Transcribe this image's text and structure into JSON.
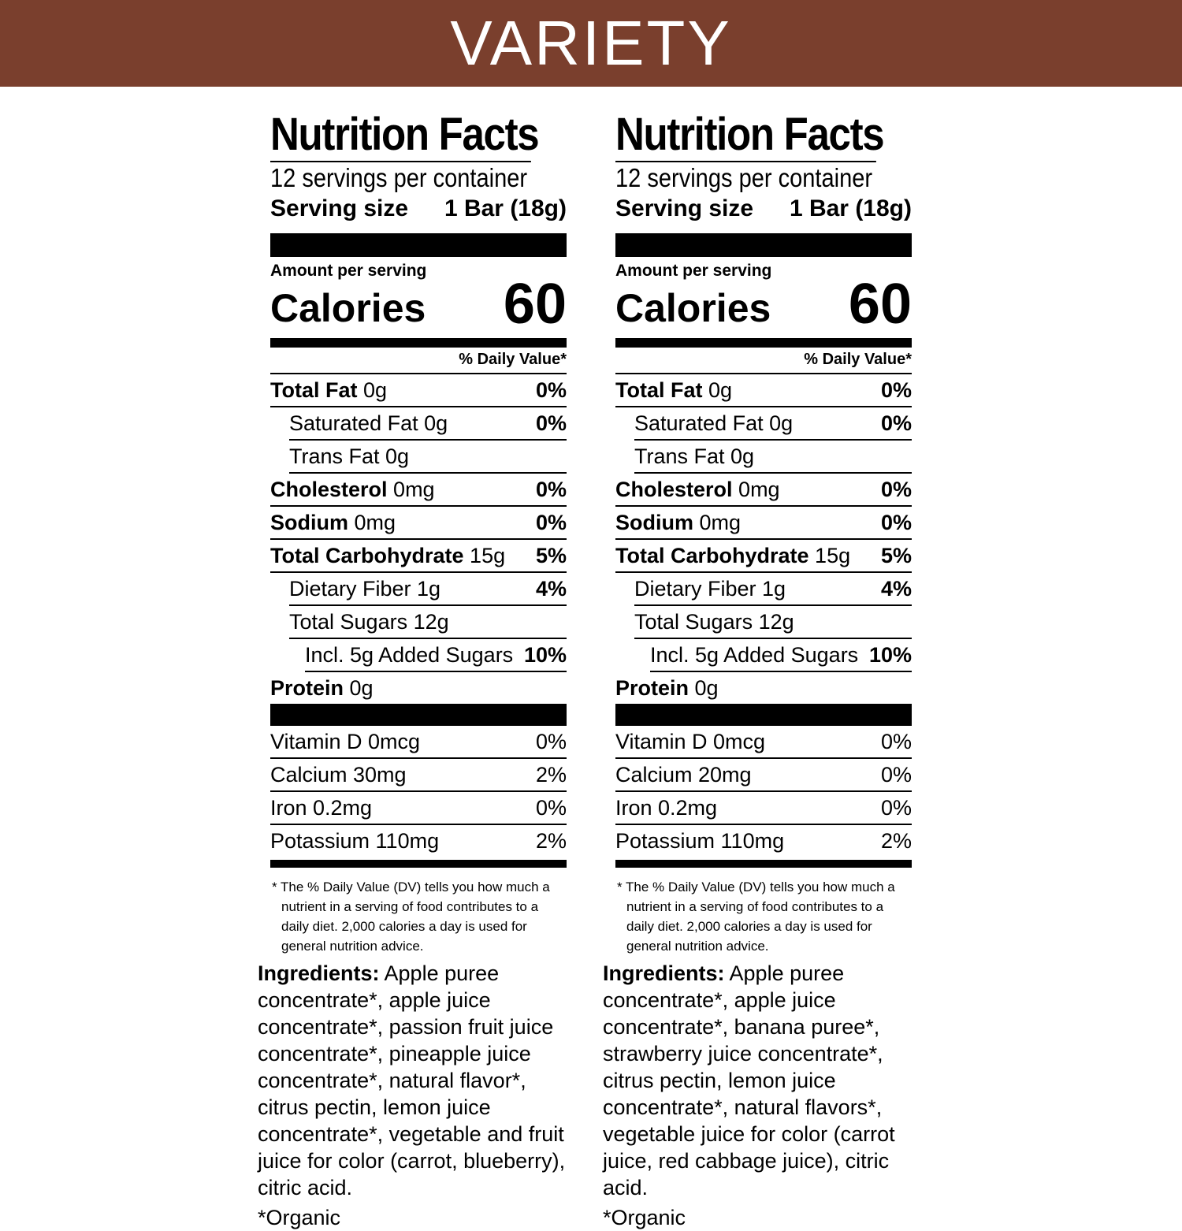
{
  "banner": {
    "title": "VARIETY",
    "color": "#7a3f2d"
  },
  "panels": [
    {
      "title": "Nutrition Facts",
      "servings": "12 servings per container",
      "serving_size_label": "Serving size",
      "serving_size_value": "1 Bar (18g)",
      "amount_label": "Amount per serving",
      "calories_label": "Calories",
      "calories_value": "60",
      "dv_header": "% Daily Value*",
      "nutrients": [
        {
          "name": "Total Fat",
          "amount": "0g",
          "dv": "0%"
        },
        {
          "name": "Saturated Fat 0g",
          "dv": "0%"
        },
        {
          "name": "Trans Fat 0g",
          "dv": ""
        },
        {
          "name": "Cholesterol",
          "amount": "0mg",
          "dv": "0%"
        },
        {
          "name": "Sodium",
          "amount": "0mg",
          "dv": "0%"
        },
        {
          "name": "Total Carbohydrate",
          "amount": "15g",
          "dv": "5%"
        },
        {
          "name": "Dietary Fiber 1g",
          "dv": "4%"
        },
        {
          "name": "Total Sugars 12g",
          "dv": ""
        },
        {
          "name": "Incl. 5g Added Sugars",
          "dv": "10%"
        },
        {
          "name": "Protein",
          "amount": "0g",
          "dv": ""
        }
      ],
      "vitamins": [
        {
          "name": "Vitamin D 0mcg",
          "dv": "0%"
        },
        {
          "name": "Calcium 30mg",
          "dv": "2%"
        },
        {
          "name": "Iron 0.2mg",
          "dv": "0%"
        },
        {
          "name": "Potassium 110mg",
          "dv": "2%"
        }
      ],
      "footnote": "* The % Daily Value (DV) tells you how much a nutrient in a serving of food contributes to a daily diet. 2,000 calories a day is used for general nutrition advice.",
      "ingredients_label": "Ingredients:",
      "ingredients_text": "Apple puree concentrate*, apple juice concentrate*, passion fruit juice concentrate*, pineapple juice concentrate*, natural flavor*, citrus pectin, lemon juice concentrate*, vegetable and fruit juice for color (carrot, blueberry), citric acid.",
      "organic_note": "*Organic"
    },
    {
      "title": "Nutrition Facts",
      "servings": "12 servings per container",
      "serving_size_label": "Serving size",
      "serving_size_value": "1 Bar (18g)",
      "amount_label": "Amount per serving",
      "calories_label": "Calories",
      "calories_value": "60",
      "dv_header": "% Daily Value*",
      "nutrients": [
        {
          "name": "Total Fat",
          "amount": "0g",
          "dv": "0%"
        },
        {
          "name": "Saturated Fat 0g",
          "dv": "0%"
        },
        {
          "name": "Trans Fat 0g",
          "dv": ""
        },
        {
          "name": "Cholesterol",
          "amount": "0mg",
          "dv": "0%"
        },
        {
          "name": "Sodium",
          "amount": "0mg",
          "dv": "0%"
        },
        {
          "name": "Total Carbohydrate",
          "amount": "15g",
          "dv": "5%"
        },
        {
          "name": "Dietary Fiber 1g",
          "dv": "4%"
        },
        {
          "name": "Total Sugars 12g",
          "dv": ""
        },
        {
          "name": "Incl. 5g Added Sugars",
          "dv": "10%"
        },
        {
          "name": "Protein",
          "amount": "0g",
          "dv": ""
        }
      ],
      "vitamins": [
        {
          "name": "Vitamin D 0mcg",
          "dv": "0%"
        },
        {
          "name": "Calcium 20mg",
          "dv": "0%"
        },
        {
          "name": "Iron 0.2mg",
          "dv": "0%"
        },
        {
          "name": "Potassium 110mg",
          "dv": "2%"
        }
      ],
      "footnote": "* The % Daily Value (DV) tells you how much a nutrient in a serving of food contributes to a daily diet. 2,000 calories a day is used for general nutrition advice.",
      "ingredients_label": "Ingredients:",
      "ingredients_text": "Apple puree concentrate*, apple juice concentrate*, banana puree*, strawberry juice concentrate*, citrus pectin, lemon juice concentrate*, natural flavors*, vegetable juice for color (carrot juice, red cabbage juice), citric acid.",
      "organic_note": "*Organic"
    }
  ]
}
